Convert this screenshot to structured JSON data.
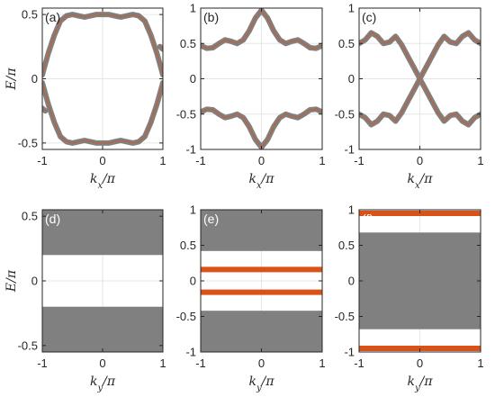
{
  "chart_data": [
    {
      "panel": "(a)",
      "type": "line",
      "xlabel": "k_x/π",
      "ylabel": "E/π",
      "xlim": [
        -1,
        1
      ],
      "ylim": [
        -0.55,
        0.55
      ],
      "xticks": [
        "-1",
        "0",
        "1"
      ],
      "yticks": [
        "-0.5",
        "0",
        "0.5"
      ],
      "grid": true,
      "label_color": "#262626",
      "series": [
        {
          "color": "#808080",
          "x": [
            -1,
            -0.9,
            -0.8,
            -0.7,
            -0.6,
            -0.5,
            -0.4,
            -0.3,
            -0.2,
            -0.1,
            0,
            0.1,
            0.2,
            0.3,
            0.4,
            0.5,
            0.6,
            0.7,
            0.8,
            0.9,
            1
          ],
          "y": [
            0.03,
            0.2,
            0.34,
            0.45,
            0.49,
            0.5,
            0.49,
            0.48,
            0.49,
            0.5,
            0.5,
            0.5,
            0.49,
            0.48,
            0.49,
            0.5,
            0.49,
            0.45,
            0.34,
            0.2,
            0.03
          ]
        },
        {
          "color": "#808080",
          "x": [
            -1,
            -0.9,
            -0.8,
            -0.7,
            -0.6,
            -0.5,
            -0.4,
            -0.3,
            -0.2,
            -0.1,
            0,
            0.1,
            0.2,
            0.3,
            0.4,
            0.5,
            0.6,
            0.7,
            0.8,
            0.9,
            1
          ],
          "y": [
            -0.03,
            -0.2,
            -0.34,
            -0.45,
            -0.49,
            -0.5,
            -0.49,
            -0.48,
            -0.49,
            -0.5,
            -0.5,
            -0.5,
            -0.49,
            -0.48,
            -0.49,
            -0.5,
            -0.49,
            -0.45,
            -0.34,
            -0.2,
            -0.03
          ]
        },
        {
          "color": "#808080",
          "x": [
            -1,
            -0.95
          ],
          "y": [
            -0.23,
            -0.25
          ]
        },
        {
          "color": "#808080",
          "x": [
            0.95,
            1
          ],
          "y": [
            0.25,
            0.23
          ]
        }
      ]
    },
    {
      "panel": "(b)",
      "type": "line",
      "xlabel": "k_x/π",
      "xlim": [
        -1,
        1
      ],
      "ylim": [
        -1,
        1
      ],
      "xticks": [
        "-1",
        "0",
        "1"
      ],
      "yticks": [
        "-1",
        "-0.5",
        "0",
        "0.5",
        "1"
      ],
      "grid": true,
      "label_color": "#262626",
      "series": [
        {
          "color": "#808080",
          "x": [
            -1,
            -0.9,
            -0.8,
            -0.7,
            -0.6,
            -0.5,
            -0.4,
            -0.3,
            -0.2,
            -0.1,
            0,
            0.1,
            0.2,
            0.3,
            0.4,
            0.5,
            0.6,
            0.7,
            0.8,
            0.9,
            1
          ],
          "y": [
            0.47,
            0.43,
            0.44,
            0.5,
            0.55,
            0.53,
            0.5,
            0.55,
            0.68,
            0.86,
            0.97,
            0.86,
            0.68,
            0.55,
            0.5,
            0.53,
            0.55,
            0.5,
            0.44,
            0.43,
            0.47
          ]
        },
        {
          "color": "#808080",
          "x": [
            -1,
            -0.9,
            -0.8,
            -0.7,
            -0.6,
            -0.5,
            -0.4,
            -0.3,
            -0.2,
            -0.1,
            0,
            0.1,
            0.2,
            0.3,
            0.4,
            0.5,
            0.6,
            0.7,
            0.8,
            0.9,
            1
          ],
          "y": [
            -0.47,
            -0.43,
            -0.44,
            -0.5,
            -0.55,
            -0.53,
            -0.5,
            -0.55,
            -0.68,
            -0.86,
            -0.97,
            -0.86,
            -0.68,
            -0.55,
            -0.5,
            -0.53,
            -0.55,
            -0.5,
            -0.44,
            -0.43,
            -0.47
          ]
        }
      ]
    },
    {
      "panel": "(c)",
      "type": "line",
      "xlabel": "k_x/π",
      "xlim": [
        -1,
        1
      ],
      "ylim": [
        -1,
        1
      ],
      "xticks": [
        "-1",
        "0",
        "1"
      ],
      "yticks": [
        "-1",
        "-0.5",
        "0",
        "0.5",
        "1"
      ],
      "grid": true,
      "label_color": "#262626",
      "series": [
        {
          "color": "#808080",
          "x": [
            -1,
            -0.9,
            -0.8,
            -0.7,
            -0.6,
            -0.5,
            -0.4,
            -0.3,
            -0.2,
            -0.1,
            0,
            0.1,
            0.2,
            0.3,
            0.4,
            0.5,
            0.6,
            0.7,
            0.8,
            0.9,
            1
          ],
          "y": [
            0.5,
            0.55,
            0.65,
            0.6,
            0.5,
            0.52,
            0.6,
            0.48,
            0.32,
            0.16,
            0,
            -0.16,
            -0.32,
            -0.48,
            -0.6,
            -0.52,
            -0.5,
            -0.6,
            -0.65,
            -0.55,
            -0.5
          ]
        },
        {
          "color": "#808080",
          "x": [
            -1,
            -0.9,
            -0.8,
            -0.7,
            -0.6,
            -0.5,
            -0.4,
            -0.3,
            -0.2,
            -0.1,
            0,
            0.1,
            0.2,
            0.3,
            0.4,
            0.5,
            0.6,
            0.7,
            0.8,
            0.9,
            1
          ],
          "y": [
            -0.5,
            -0.55,
            -0.65,
            -0.6,
            -0.5,
            -0.52,
            -0.6,
            -0.48,
            -0.32,
            -0.16,
            0,
            0.16,
            0.32,
            0.48,
            0.6,
            0.52,
            0.5,
            0.6,
            0.65,
            0.55,
            0.5
          ]
        }
      ]
    },
    {
      "panel": "(d)",
      "type": "area",
      "xlabel": "k_y/π",
      "ylabel": "E/π",
      "xlim": [
        -1,
        1
      ],
      "ylim": [
        -0.55,
        0.55
      ],
      "xticks": [
        "-1",
        "0",
        "1"
      ],
      "yticks": [
        "-0.5",
        "0",
        "0.5"
      ],
      "grid": true,
      "label_color": "#ffffff",
      "bands": [
        {
          "color": "#808080",
          "y0": 0.2,
          "y1": 0.55
        },
        {
          "color": "#808080",
          "y0": -0.55,
          "y1": -0.2
        }
      ],
      "lines": []
    },
    {
      "panel": "(e)",
      "type": "area",
      "xlabel": "k_y/π",
      "xlim": [
        -1,
        1
      ],
      "ylim": [
        -1,
        1
      ],
      "xticks": [
        "-1",
        "0",
        "1"
      ],
      "yticks": [
        "-1",
        "-0.5",
        "0",
        "0.5",
        "1"
      ],
      "grid": true,
      "label_color": "#ffffff",
      "bands": [
        {
          "color": "#808080",
          "y0": 0.42,
          "y1": 1
        },
        {
          "color": "#808080",
          "y0": -1,
          "y1": -0.42
        }
      ],
      "lines": [
        {
          "color": "#d95319",
          "y": 0.16
        },
        {
          "color": "#d95319",
          "y": -0.16
        }
      ]
    },
    {
      "panel": "(f)",
      "type": "area",
      "xlabel": "k_y/π",
      "xlim": [
        -1,
        1
      ],
      "ylim": [
        -1,
        1
      ],
      "xticks": [
        "-1",
        "0",
        "1"
      ],
      "yticks": [
        "-1",
        "-0.5",
        "0",
        "0.5",
        "1"
      ],
      "grid": true,
      "label_color": "#ffffff",
      "bands": [
        {
          "color": "#808080",
          "y0": -0.68,
          "y1": 0.68
        }
      ],
      "lines": [
        {
          "color": "#d95319",
          "y": 0.95
        },
        {
          "color": "#d95319",
          "y": -0.95
        }
      ]
    }
  ]
}
